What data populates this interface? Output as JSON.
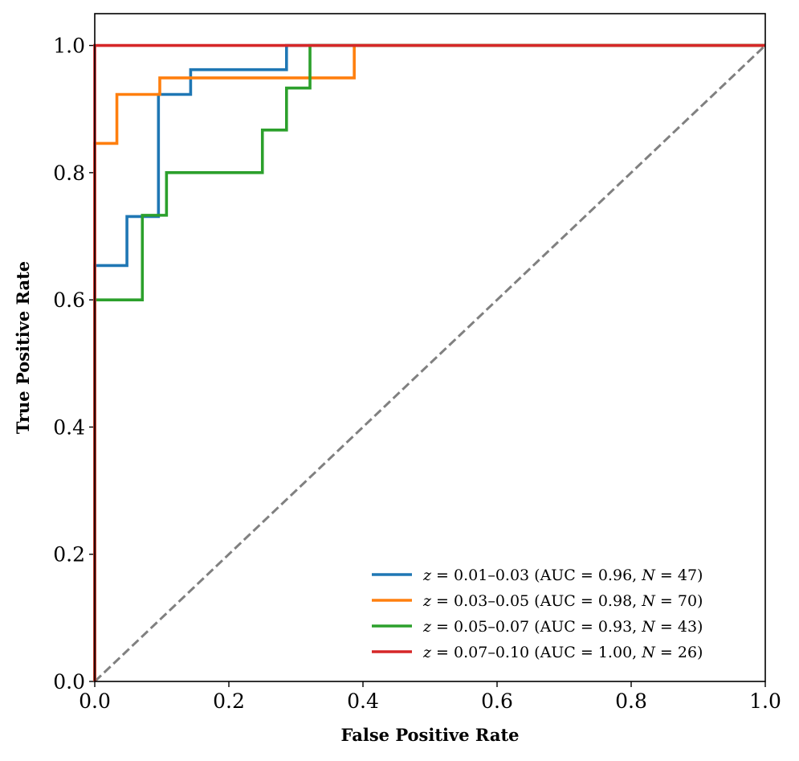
{
  "chart_data": {
    "type": "line",
    "title": "",
    "xlabel": "False Positive Rate",
    "ylabel": "True Positive Rate",
    "xlim": [
      0,
      1
    ],
    "ylim": [
      0,
      1.05
    ],
    "x_ticks": [
      "0.0",
      "0.2",
      "0.4",
      "0.6",
      "0.8",
      "1.0"
    ],
    "y_ticks": [
      "0.0",
      "0.2",
      "0.4",
      "0.6",
      "0.8",
      "1.0"
    ],
    "grid": false,
    "legend_position": "bottom-right",
    "series": [
      {
        "name": "z = 0.01–0.03 (AUC = 0.96, N = 47)",
        "legend_z": "z",
        "legend_range": " = 0.01–0.03 (AUC = 0.96, ",
        "legend_n": "N",
        "legend_tail": " = 47)",
        "color": "#1f77b4",
        "x": [
          0,
          0,
          0.048,
          0.048,
          0.095,
          0.095,
          0.143,
          0.143,
          0.286,
          0.286,
          1.0
        ],
        "y": [
          0,
          0.654,
          0.654,
          0.731,
          0.731,
          0.923,
          0.923,
          0.962,
          0.962,
          1.0,
          1.0
        ]
      },
      {
        "name": "z = 0.03–0.05 (AUC = 0.98, N = 70)",
        "legend_z": "z",
        "legend_range": " = 0.03–0.05 (AUC = 0.98, ",
        "legend_n": "N",
        "legend_tail": " = 70)",
        "color": "#ff7f0e",
        "x": [
          0,
          0,
          0.033,
          0.033,
          0.097,
          0.097,
          0.387,
          0.387,
          1.0
        ],
        "y": [
          0,
          0.846,
          0.846,
          0.923,
          0.923,
          0.949,
          0.949,
          1.0,
          1.0
        ]
      },
      {
        "name": "z = 0.05–0.07 (AUC = 0.93, N = 43)",
        "legend_z": "z",
        "legend_range": " = 0.05–0.07 (AUC = 0.93, ",
        "legend_n": "N",
        "legend_tail": " = 43)",
        "color": "#2ca02c",
        "x": [
          0,
          0,
          0.071,
          0.071,
          0.107,
          0.107,
          0.25,
          0.25,
          0.286,
          0.286,
          0.321,
          0.321,
          1.0
        ],
        "y": [
          0,
          0.6,
          0.6,
          0.733,
          0.733,
          0.8,
          0.8,
          0.867,
          0.867,
          0.933,
          0.933,
          1.0,
          1.0
        ]
      },
      {
        "name": "z = 0.07–0.10 (AUC = 1.00, N = 26)",
        "legend_z": "z",
        "legend_range": " = 0.07–0.10 (AUC = 1.00, ",
        "legend_n": "N",
        "legend_tail": " = 26)",
        "color": "#d62728",
        "x": [
          0,
          0,
          1.0
        ],
        "y": [
          0,
          1.0,
          1.0
        ]
      }
    ],
    "reference_line": {
      "x": [
        0,
        1
      ],
      "y": [
        0,
        1
      ],
      "color": "#808080",
      "style": "dashed"
    }
  }
}
